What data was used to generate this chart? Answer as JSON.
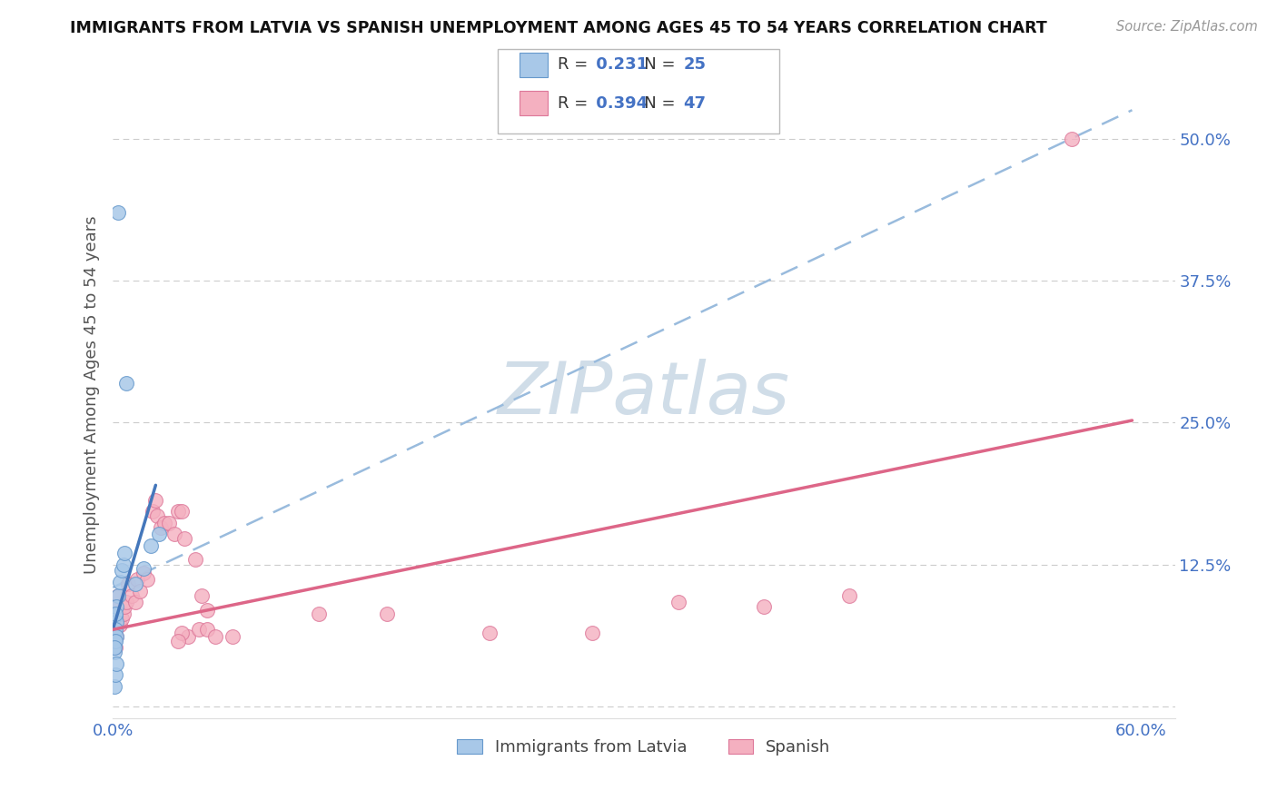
{
  "title": "IMMIGRANTS FROM LATVIA VS SPANISH UNEMPLOYMENT AMONG AGES 45 TO 54 YEARS CORRELATION CHART",
  "source": "Source: ZipAtlas.com",
  "ylabel": "Unemployment Among Ages 45 to 54 years",
  "xlim": [
    0.0,
    0.62
  ],
  "ylim": [
    -0.01,
    0.56
  ],
  "yticks": [
    0.0,
    0.125,
    0.25,
    0.375,
    0.5
  ],
  "ytick_labels": [
    "",
    "12.5%",
    "25.0%",
    "37.5%",
    "50.0%"
  ],
  "xticks": [
    0.0,
    0.1,
    0.2,
    0.3,
    0.4,
    0.5,
    0.6
  ],
  "xtick_labels": [
    "0.0%",
    "",
    "",
    "",
    "",
    "",
    "60.0%"
  ],
  "legend_label1": "Immigrants from Latvia",
  "legend_label2": "Spanish",
  "legend_r1": "R =  0.231",
  "legend_n1": "N = 25",
  "legend_r2": "R =  0.394",
  "legend_n2": "N = 47",
  "blue_scatter_color": "#a8c8e8",
  "blue_scatter_edge": "#6699cc",
  "pink_scatter_color": "#f4b0c0",
  "pink_scatter_edge": "#dd7799",
  "blue_line_color": "#4477bb",
  "pink_line_color": "#dd6688",
  "dashed_line_color": "#99bbdd",
  "watermark_color": "#d0dde8",
  "tick_color": "#4472C4",
  "grid_color": "#cccccc",
  "scatter_blue": [
    [
      0.003,
      0.435
    ],
    [
      0.008,
      0.285
    ],
    [
      0.001,
      0.065
    ],
    [
      0.0015,
      0.08
    ],
    [
      0.001,
      0.055
    ],
    [
      0.002,
      0.075
    ],
    [
      0.001,
      0.048
    ],
    [
      0.0015,
      0.068
    ],
    [
      0.002,
      0.062
    ],
    [
      0.0015,
      0.058
    ],
    [
      0.001,
      0.052
    ],
    [
      0.003,
      0.098
    ],
    [
      0.002,
      0.088
    ],
    [
      0.0015,
      0.082
    ],
    [
      0.004,
      0.11
    ],
    [
      0.005,
      0.12
    ],
    [
      0.006,
      0.125
    ],
    [
      0.007,
      0.135
    ],
    [
      0.013,
      0.108
    ],
    [
      0.018,
      0.122
    ],
    [
      0.022,
      0.142
    ],
    [
      0.027,
      0.152
    ],
    [
      0.001,
      0.018
    ],
    [
      0.0015,
      0.028
    ],
    [
      0.002,
      0.038
    ]
  ],
  "scatter_pink": [
    [
      0.001,
      0.075
    ],
    [
      0.0015,
      0.068
    ],
    [
      0.002,
      0.062
    ],
    [
      0.001,
      0.058
    ],
    [
      0.0015,
      0.052
    ],
    [
      0.002,
      0.088
    ],
    [
      0.003,
      0.098
    ],
    [
      0.004,
      0.072
    ],
    [
      0.005,
      0.078
    ],
    [
      0.006,
      0.082
    ],
    [
      0.007,
      0.088
    ],
    [
      0.008,
      0.092
    ],
    [
      0.009,
      0.108
    ],
    [
      0.011,
      0.098
    ],
    [
      0.013,
      0.092
    ],
    [
      0.014,
      0.112
    ],
    [
      0.016,
      0.102
    ],
    [
      0.018,
      0.118
    ],
    [
      0.02,
      0.112
    ],
    [
      0.023,
      0.172
    ],
    [
      0.025,
      0.182
    ],
    [
      0.026,
      0.168
    ],
    [
      0.028,
      0.158
    ],
    [
      0.03,
      0.162
    ],
    [
      0.033,
      0.162
    ],
    [
      0.036,
      0.152
    ],
    [
      0.038,
      0.172
    ],
    [
      0.04,
      0.172
    ],
    [
      0.042,
      0.148
    ],
    [
      0.044,
      0.062
    ],
    [
      0.05,
      0.068
    ],
    [
      0.055,
      0.068
    ],
    [
      0.06,
      0.062
    ],
    [
      0.07,
      0.062
    ],
    [
      0.04,
      0.065
    ],
    [
      0.048,
      0.13
    ],
    [
      0.052,
      0.098
    ],
    [
      0.055,
      0.085
    ],
    [
      0.12,
      0.082
    ],
    [
      0.16,
      0.082
    ],
    [
      0.22,
      0.065
    ],
    [
      0.28,
      0.065
    ],
    [
      0.33,
      0.092
    ],
    [
      0.38,
      0.088
    ],
    [
      0.43,
      0.098
    ],
    [
      0.038,
      0.058
    ],
    [
      0.56,
      0.5
    ]
  ],
  "blue_line": {
    "x0": 0.0,
    "y0": 0.068,
    "x1": 0.025,
    "y1": 0.195
  },
  "pink_line": {
    "x0": 0.0,
    "y0": 0.068,
    "x1": 0.595,
    "y1": 0.252
  },
  "dashed_line": {
    "x0": 0.0,
    "y0": 0.105,
    "x1": 0.595,
    "y1": 0.525
  }
}
